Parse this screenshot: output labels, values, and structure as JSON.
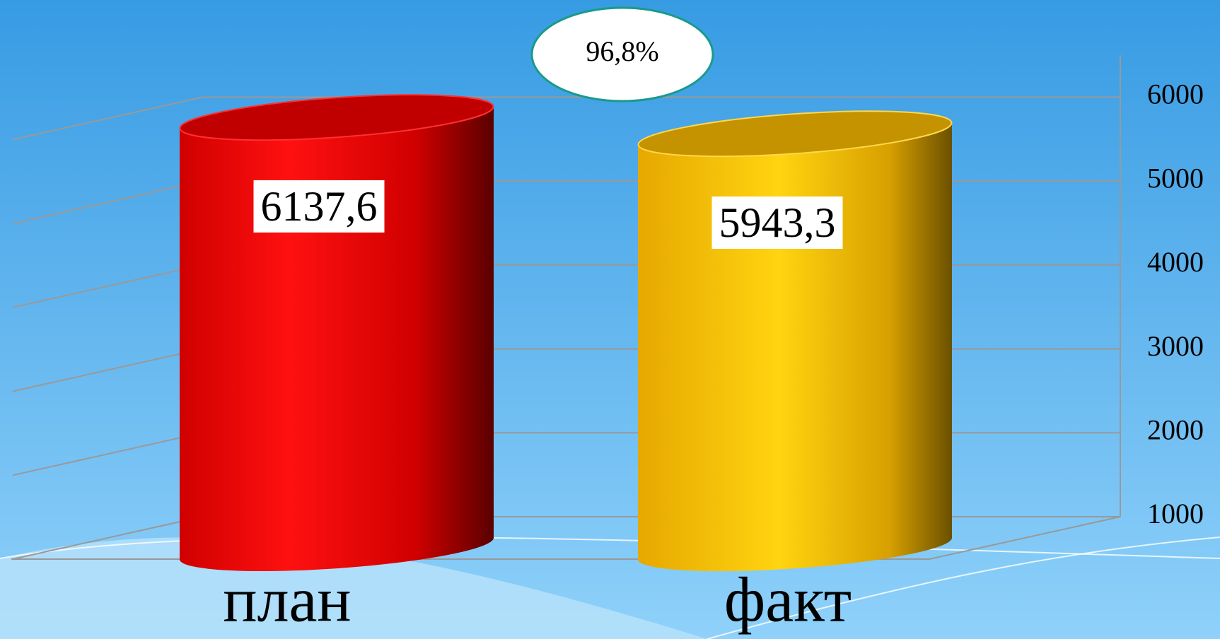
{
  "chart_data": {
    "type": "cylinder",
    "categories": [
      "план",
      "факт"
    ],
    "values": [
      6137.6,
      5943.3
    ],
    "value_labels": [
      "6137,6",
      "5943,3"
    ],
    "colors": [
      "#ff0a0a",
      "#ffc800"
    ],
    "annotation": "96,8%",
    "ylim": [
      1000,
      6500
    ],
    "yticks": [
      1000,
      2000,
      3000,
      4000,
      5000,
      6000
    ],
    "grid": true
  }
}
